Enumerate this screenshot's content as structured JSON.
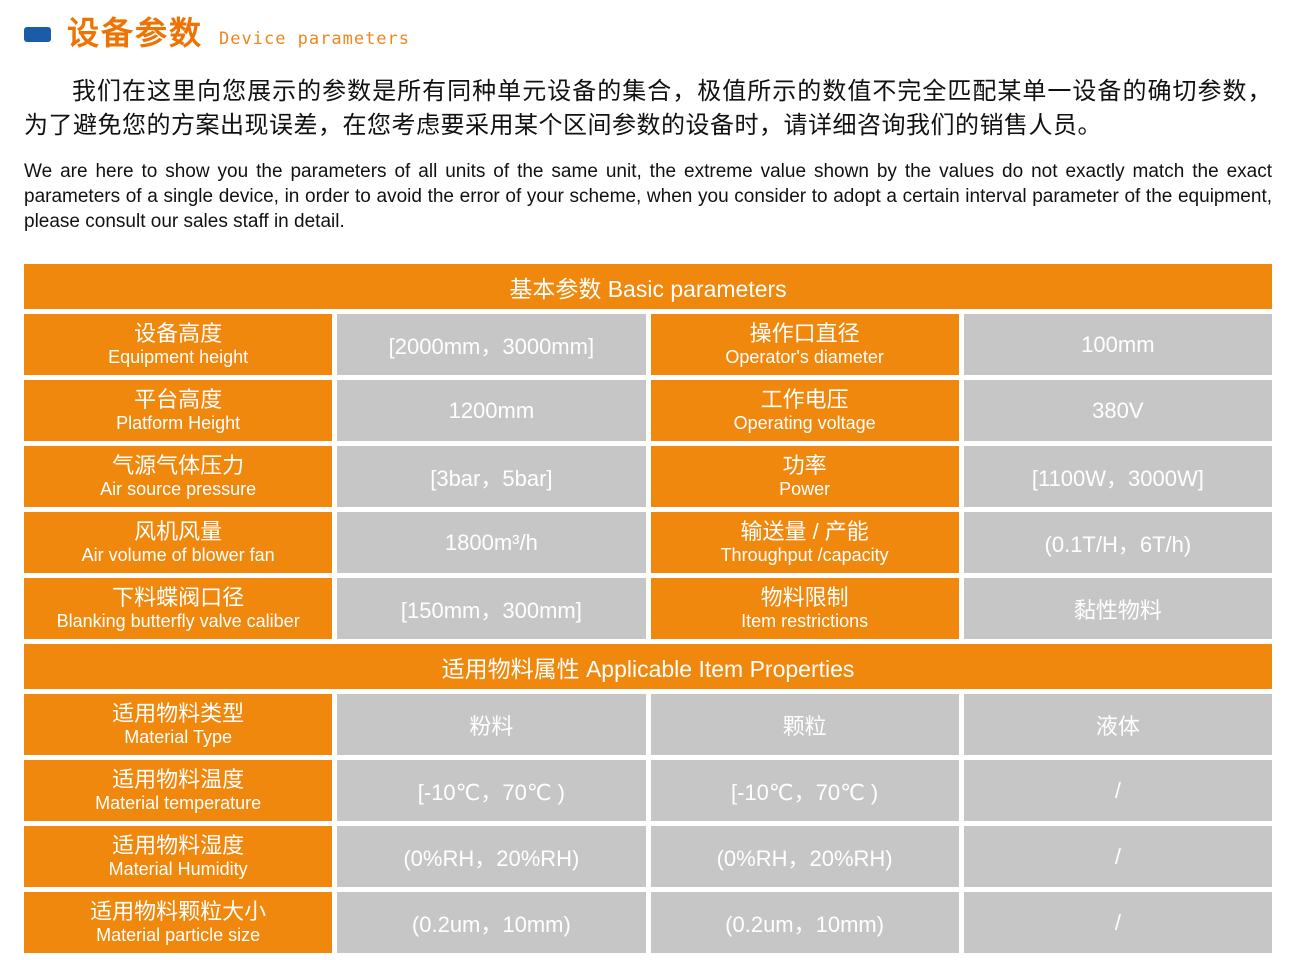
{
  "colors": {
    "table_orange": "#F0880E",
    "title_orange": "#EE7302",
    "subtitle_orange": "#F0861C",
    "value_gray": "#C6C6C6",
    "marker_blue": "#1B5CA8"
  },
  "header": {
    "title_zh": "设备参数",
    "title_en": "Device parameters"
  },
  "intro": {
    "zh": "我们在这里向您展示的参数是所有同种单元设备的集合，极值所示的数值不完全匹配某单一设备的确切参数，为了避免您的方案出现误差，在您考虑要采用某个区间参数的设备时，请详细咨询我们的销售人员。",
    "en": "We are here to show you the parameters of all units of the same unit, the extreme value shown by the values do not exactly match the exact parameters of a single device, in order to avoid the error of your scheme, when you consider to adopt a certain interval parameter of the equipment, please consult our sales staff in detail."
  },
  "table": {
    "sections": [
      {
        "title": "基本参数 Basic parameters",
        "rows": [
          {
            "cells": [
              {
                "type": "label",
                "zh": "设备高度",
                "en": "Equipment height"
              },
              {
                "type": "value",
                "text": "[2000mm，3000mm]"
              },
              {
                "type": "label",
                "zh": "操作口直径",
                "en": "Operator's diameter"
              },
              {
                "type": "value",
                "text": "100mm"
              }
            ]
          },
          {
            "cells": [
              {
                "type": "label",
                "zh": "平台高度",
                "en": "Platform Height"
              },
              {
                "type": "value",
                "text": "1200mm"
              },
              {
                "type": "label",
                "zh": "工作电压",
                "en": "Operating voltage"
              },
              {
                "type": "value",
                "text": "380V"
              }
            ]
          },
          {
            "cells": [
              {
                "type": "label",
                "zh": "气源气体压力",
                "en": "Air source pressure"
              },
              {
                "type": "value",
                "text": "[3bar，5bar]"
              },
              {
                "type": "label",
                "zh": "功率",
                "en": "Power"
              },
              {
                "type": "value",
                "text": "[1100W，3000W]"
              }
            ]
          },
          {
            "cells": [
              {
                "type": "label",
                "zh": "风机风量",
                "en": "Air volume of blower fan"
              },
              {
                "type": "value",
                "text": "1800m³/h"
              },
              {
                "type": "label",
                "zh": "输送量 / 产能",
                "en": "Throughput /capacity"
              },
              {
                "type": "value",
                "text": "(0.1T/H，6T/h)"
              }
            ]
          },
          {
            "cells": [
              {
                "type": "label",
                "zh": "下料蝶阀口径",
                "en": "Blanking butterfly valve caliber"
              },
              {
                "type": "value",
                "text": "[150mm，300mm]"
              },
              {
                "type": "label",
                "zh": "物料限制",
                "en": "Item restrictions"
              },
              {
                "type": "value",
                "text": "黏性物料"
              }
            ]
          }
        ]
      },
      {
        "title": "适用物料属性 Applicable Item Properties",
        "rows": [
          {
            "cells": [
              {
                "type": "label",
                "zh": "适用物料类型",
                "en": "Material Type"
              },
              {
                "type": "value",
                "text": "粉料"
              },
              {
                "type": "value",
                "text": "颗粒"
              },
              {
                "type": "value",
                "text": "液体"
              }
            ]
          },
          {
            "cells": [
              {
                "type": "label",
                "zh": "适用物料温度",
                "en": "Material temperature"
              },
              {
                "type": "value",
                "text": "[-10℃，70℃ )"
              },
              {
                "type": "value",
                "text": "[-10℃，70℃ )"
              },
              {
                "type": "value",
                "text": "/"
              }
            ]
          },
          {
            "cells": [
              {
                "type": "label",
                "zh": "适用物料湿度",
                "en": "Material Humidity"
              },
              {
                "type": "value",
                "text": "(0%RH，20%RH)"
              },
              {
                "type": "value",
                "text": "(0%RH，20%RH)"
              },
              {
                "type": "value",
                "text": "/"
              }
            ]
          },
          {
            "cells": [
              {
                "type": "label",
                "zh": "适用物料颗粒大小",
                "en": "Material particle size"
              },
              {
                "type": "value",
                "text": "(0.2um，10mm)"
              },
              {
                "type": "value",
                "text": "(0.2um，10mm)"
              },
              {
                "type": "value",
                "text": "/"
              }
            ]
          }
        ]
      }
    ]
  }
}
